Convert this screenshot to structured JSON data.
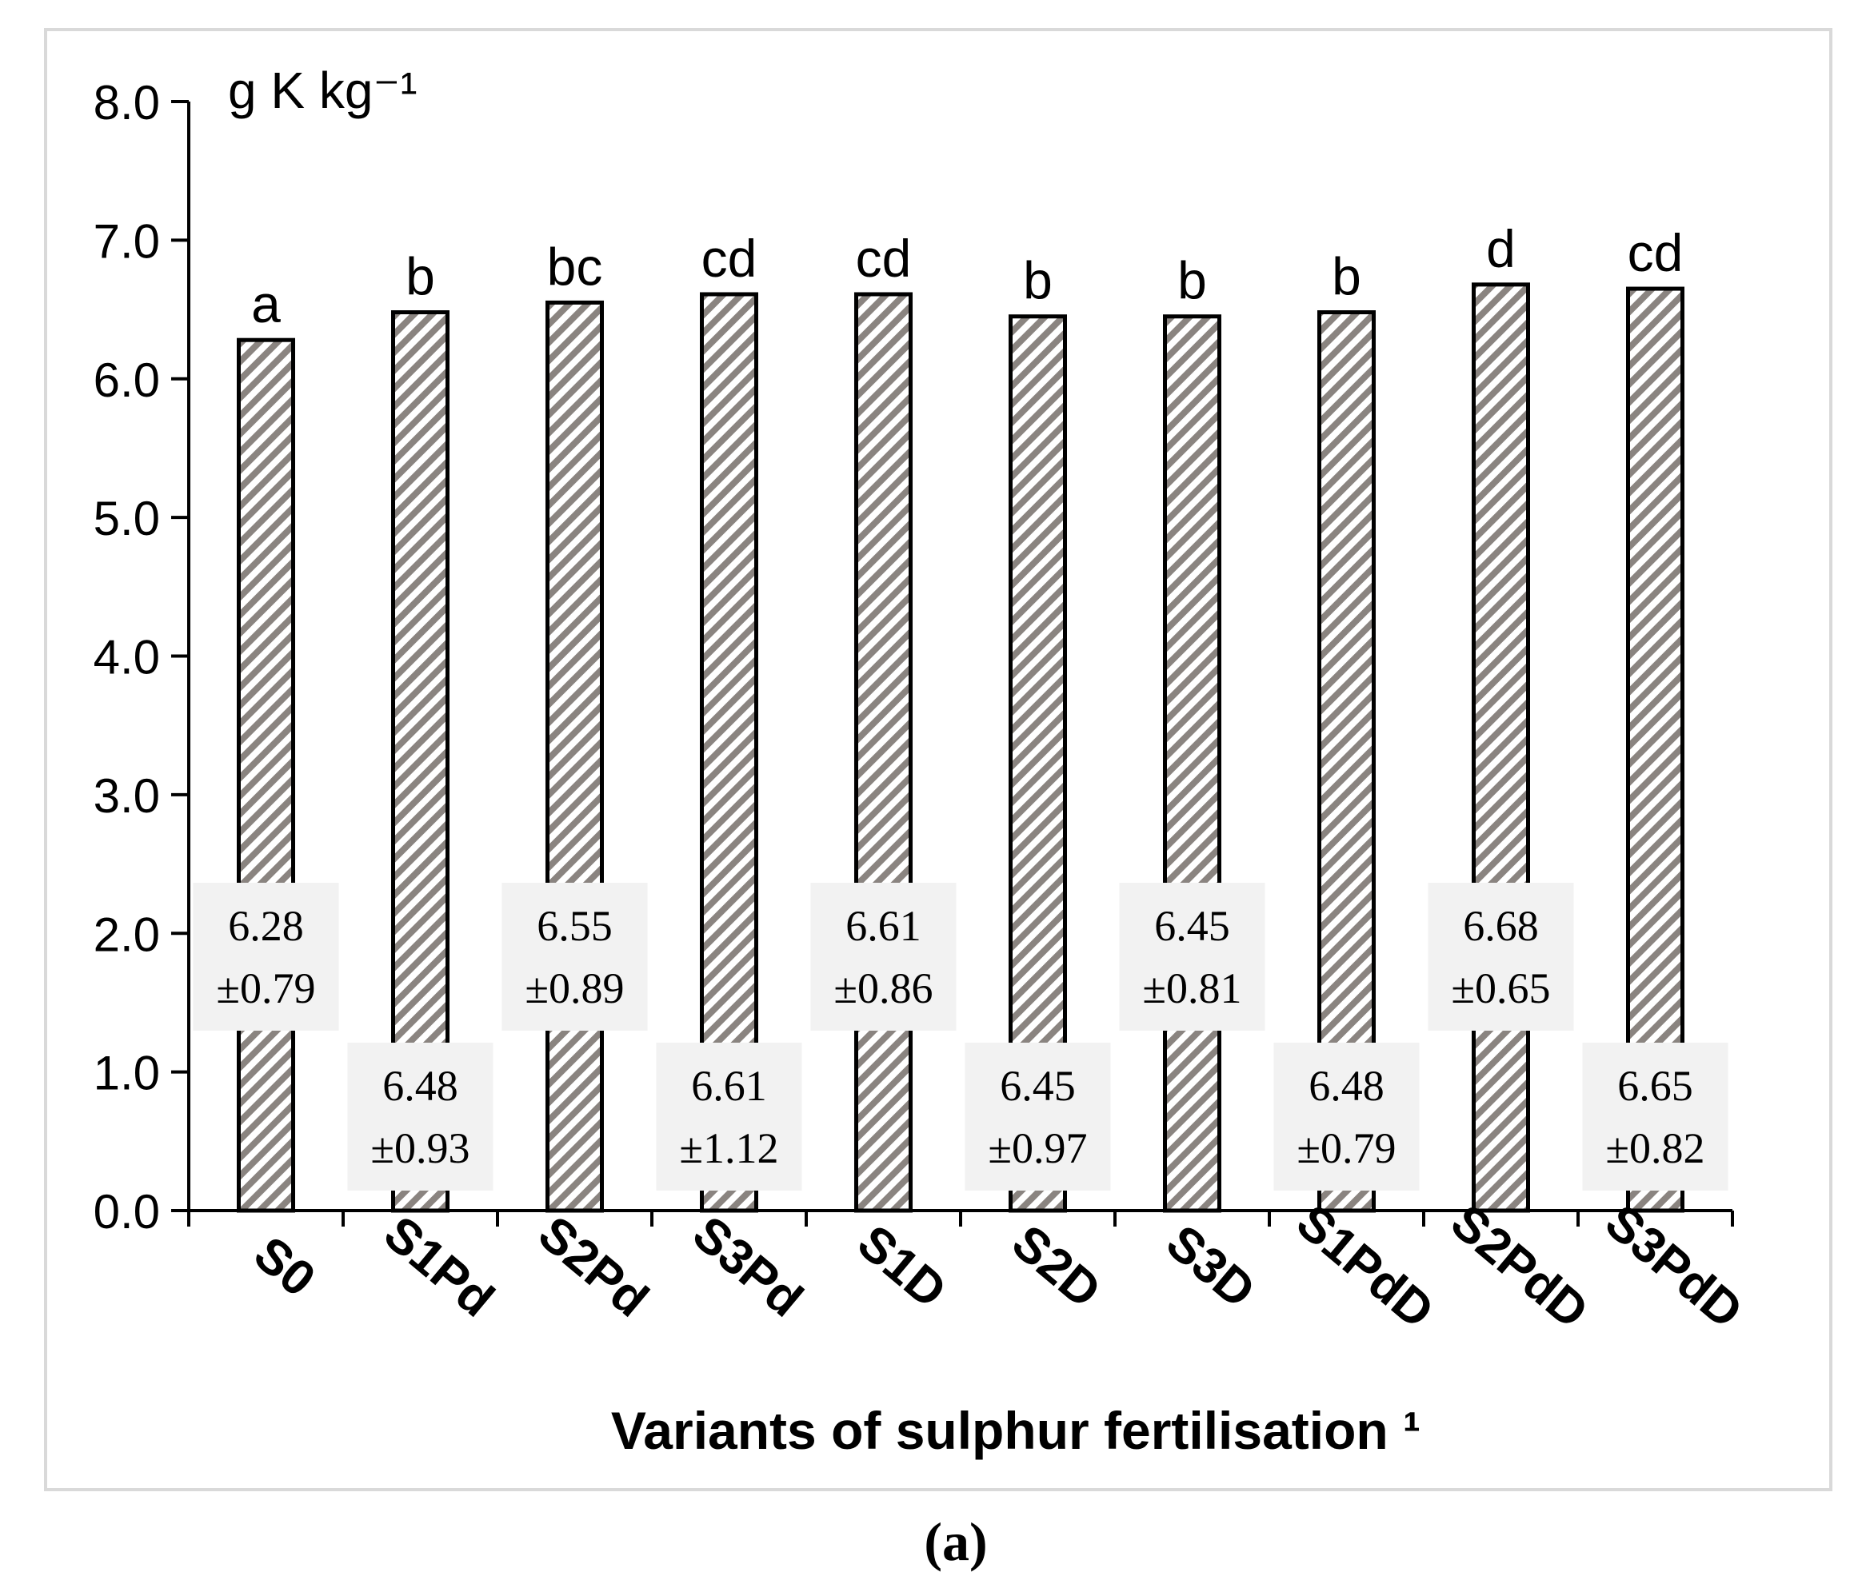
{
  "chart_data": {
    "type": "bar",
    "ylabel": "g K kg⁻¹",
    "xlabel": "Variants of sulphur fertilisation ¹",
    "caption": "(a)",
    "ylim": [
      0,
      8
    ],
    "yticks": [
      "0.0",
      "1.0",
      "2.0",
      "3.0",
      "4.0",
      "5.0",
      "6.0",
      "7.0",
      "8.0"
    ],
    "categories": [
      "S0",
      "S1Pd",
      "S2Pd",
      "S3Pd",
      "S1D",
      "S2D",
      "S3D",
      "S1PdD",
      "S2PdD",
      "S3PdD"
    ],
    "values": [
      6.28,
      6.48,
      6.55,
      6.61,
      6.61,
      6.45,
      6.45,
      6.48,
      6.68,
      6.65
    ],
    "letters": [
      "a",
      "b",
      "bc",
      "cd",
      "cd",
      "b",
      "b",
      "b",
      "d",
      "cd"
    ],
    "value_labels": [
      "6.28",
      "6.48",
      "6.55",
      "6.61",
      "6.61",
      "6.45",
      "6.45",
      "6.48",
      "6.68",
      "6.65"
    ],
    "sd_labels": [
      "±0.79",
      "±0.93",
      "±0.89",
      "±1.12",
      "±0.86",
      "±0.97",
      "±0.81",
      "±0.79",
      "±0.65",
      "±0.82"
    ],
    "grid": false,
    "bar_fill": "diagonal-hatch",
    "colors": {
      "hatch": "#8a8480",
      "bar_outline": "#000000",
      "label_box": "#f2f2f2",
      "frame": "#d9d9d9"
    }
  }
}
